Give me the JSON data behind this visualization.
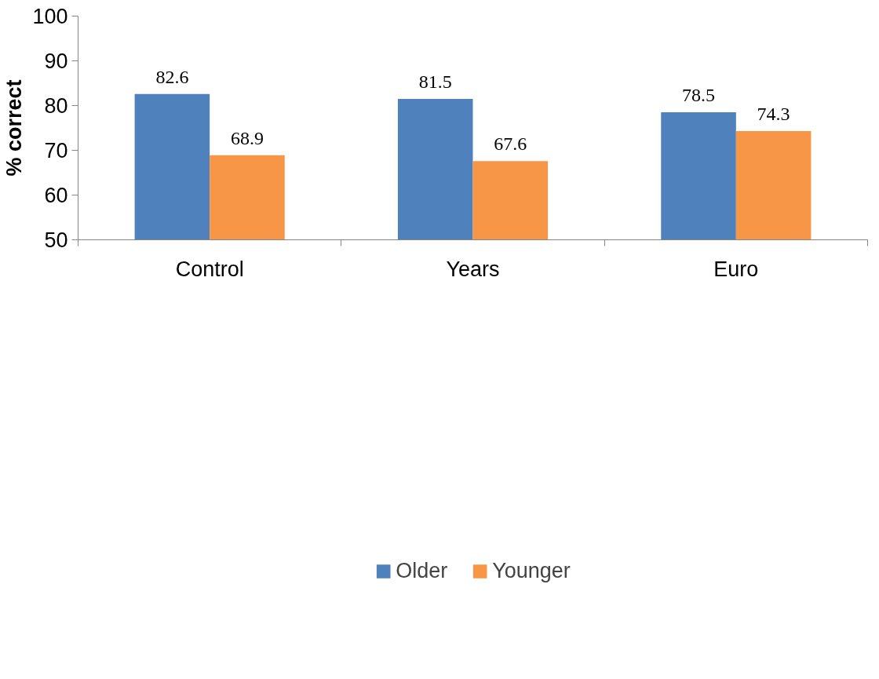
{
  "chart_data": {
    "type": "bar",
    "ylabel": "% correct",
    "categories": [
      "Control",
      "Years",
      "Euro"
    ],
    "series": [
      {
        "name": "Older",
        "color": "#4f81bd",
        "values": [
          82.6,
          81.5,
          78.5
        ]
      },
      {
        "name": "Younger",
        "color": "#f79646",
        "values": [
          68.9,
          67.6,
          74.3
        ]
      }
    ],
    "ylim": [
      50,
      100
    ],
    "yticks": [
      50,
      60,
      70,
      80,
      90,
      100
    ],
    "data_labels": true,
    "grid": false,
    "legend": "bottom"
  }
}
